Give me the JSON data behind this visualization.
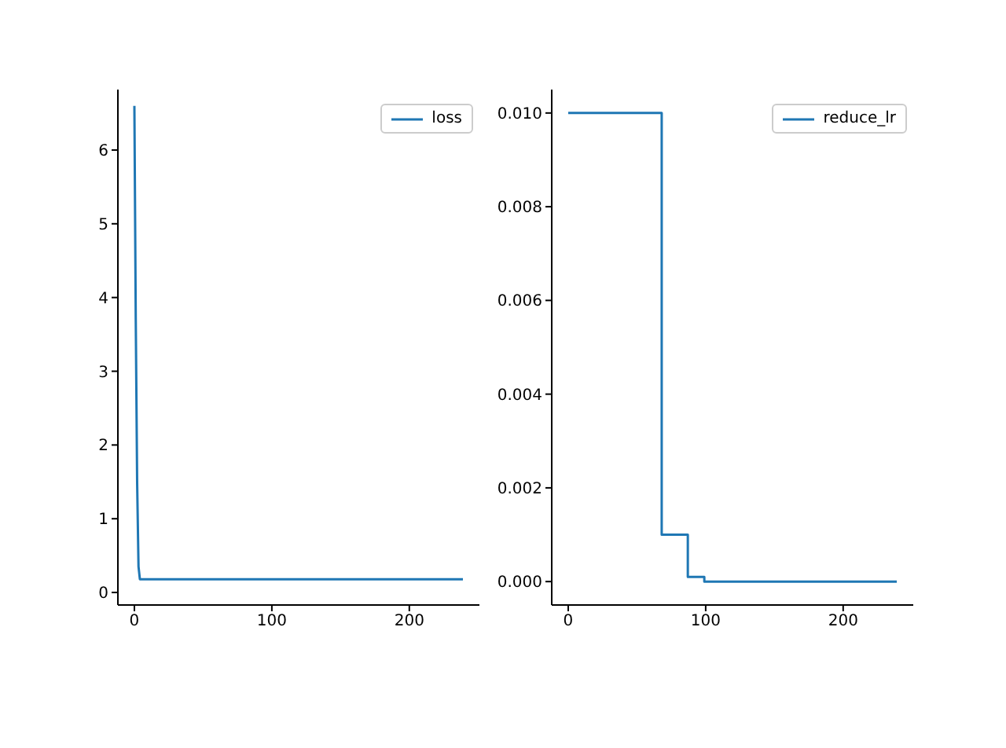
{
  "chart_data": [
    {
      "type": "line",
      "x": [
        0,
        1,
        2,
        3,
        4,
        239
      ],
      "series": [
        {
          "name": "loss",
          "color": "#1f77b4",
          "values": [
            6.6,
            3.7,
            1.5,
            0.35,
            0.18,
            0.18
          ]
        }
      ],
      "xlim": [
        -12,
        251
      ],
      "ylim": [
        -0.17,
        6.82
      ],
      "xticks": [
        0,
        100,
        200
      ],
      "yticks": [
        0,
        1,
        2,
        3,
        4,
        5,
        6
      ],
      "legend": "top right"
    },
    {
      "type": "step",
      "x": [
        0,
        68,
        87,
        99,
        239
      ],
      "series": [
        {
          "name": "reduce_lr",
          "color": "#1f77b4",
          "values": [
            0.01,
            0.001,
            0.0001,
            0,
            0
          ]
        }
      ],
      "xlim": [
        -12,
        251
      ],
      "ylim": [
        -0.0005,
        0.0105
      ],
      "xticks": [
        0,
        100,
        200
      ],
      "yticks": [
        {
          "value": 0,
          "label": "0.000"
        },
        {
          "value": 0.002,
          "label": "0.002"
        },
        {
          "value": 0.004,
          "label": "0.004"
        },
        {
          "value": 0.006,
          "label": "0.006"
        },
        {
          "value": 0.008,
          "label": "0.008"
        },
        {
          "value": 0.01,
          "label": "0.010"
        }
      ],
      "legend": "top right"
    }
  ]
}
